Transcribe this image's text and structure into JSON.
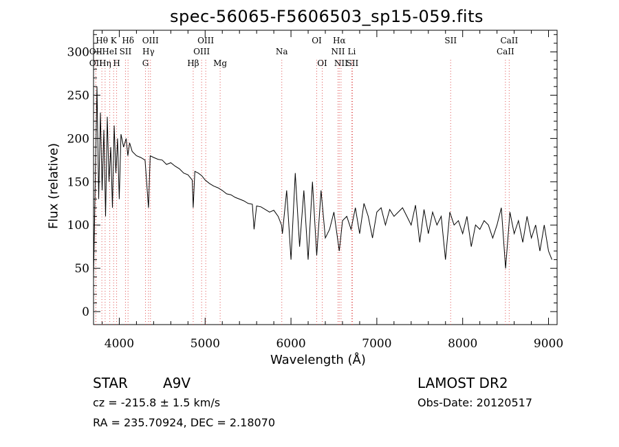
{
  "chart_data": {
    "type": "line",
    "title": "spec-56065-F5606503_sp15-059.fits",
    "xlabel": "Wavelength (Å)",
    "ylabel": "Flux (relative)",
    "xlim": [
      3700,
      9100
    ],
    "ylim": [
      -15,
      325
    ],
    "xticks": [
      4000,
      5000,
      6000,
      7000,
      8000,
      9000
    ],
    "yticks": [
      0,
      50,
      100,
      150,
      200,
      250,
      300
    ],
    "series": [
      {
        "x": [
          3700,
          3720,
          3740,
          3760,
          3780,
          3800,
          3820,
          3840,
          3860,
          3880,
          3900,
          3920,
          3940,
          3960,
          3980,
          4000,
          4020,
          4050,
          4080,
          4100,
          4120,
          4150,
          4200,
          4250,
          4300,
          4340,
          4360,
          4400,
          4450,
          4500,
          4550,
          4600,
          4650,
          4700,
          4750,
          4800,
          4850,
          4861,
          4880,
          4920,
          4960,
          5000,
          5050,
          5100,
          5150,
          5200,
          5250,
          5300,
          5350,
          5400,
          5450,
          5500,
          5550,
          5570,
          5600,
          5650,
          5700,
          5750,
          5800,
          5850,
          5890,
          5900,
          5950,
          6000,
          6050,
          6100,
          6150,
          6200,
          6250,
          6300,
          6350,
          6400,
          6450,
          6500,
          6563,
          6600,
          6650,
          6700,
          6750,
          6800,
          6850,
          6900,
          6950,
          7000,
          7050,
          7100,
          7150,
          7200,
          7250,
          7300,
          7350,
          7400,
          7450,
          7500,
          7550,
          7600,
          7650,
          7700,
          7750,
          7800,
          7850,
          7900,
          7950,
          8000,
          8050,
          8100,
          8150,
          8200,
          8250,
          8300,
          8350,
          8400,
          8450,
          8500,
          8550,
          8600,
          8650,
          8700,
          8750,
          8800,
          8850,
          8900,
          8950,
          9000,
          9040
        ],
        "y": [
          40,
          150,
          260,
          130,
          230,
          140,
          210,
          110,
          225,
          150,
          190,
          120,
          215,
          160,
          200,
          130,
          205,
          190,
          200,
          180,
          195,
          185,
          180,
          178,
          175,
          120,
          180,
          178,
          176,
          175,
          170,
          172,
          168,
          165,
          160,
          158,
          152,
          120,
          162,
          160,
          157,
          152,
          148,
          145,
          143,
          140,
          136,
          135,
          132,
          130,
          128,
          125,
          124,
          95,
          122,
          121,
          118,
          115,
          117,
          110,
          100,
          90,
          140,
          60,
          160,
          75,
          140,
          60,
          150,
          65,
          140,
          85,
          95,
          115,
          70,
          105,
          110,
          95,
          120,
          90,
          125,
          110,
          85,
          115,
          120,
          100,
          118,
          110,
          115,
          120,
          110,
          100,
          123,
          80,
          118,
          90,
          115,
          100,
          110,
          60,
          115,
          100,
          105,
          90,
          110,
          75,
          100,
          95,
          105,
          100,
          85,
          100,
          120,
          50,
          115,
          90,
          105,
          80,
          110,
          85,
          100,
          70,
          100,
          70,
          60
        ]
      }
    ],
    "lines_top": [
      {
        "label": "Hθ",
        "x": 3797
      },
      {
        "label": "K",
        "x": 3934
      },
      {
        "label": "Hδ",
        "x": 4102
      },
      {
        "label": "OIII",
        "x": 4363
      },
      {
        "label": "OIII",
        "x": 5007
      },
      {
        "label": "OI",
        "x": 6300
      },
      {
        "label": "Hα",
        "x": 6563
      },
      {
        "label": "SII",
        "x": 7860
      },
      {
        "label": "CaII",
        "x": 8542
      }
    ],
    "lines_mid": [
      {
        "label": "OII",
        "x": 3727
      },
      {
        "label": "HeI",
        "x": 3889
      },
      {
        "label": "SII",
        "x": 4072
      },
      {
        "label": "Hγ",
        "x": 4340
      },
      {
        "label": "OIII",
        "x": 4959
      },
      {
        "label": "Na",
        "x": 5893
      },
      {
        "label": "NII",
        "x": 6548
      },
      {
        "label": "Li",
        "x": 6708
      },
      {
        "label": "CaII",
        "x": 8498
      }
    ],
    "lines_low": [
      {
        "label": "OII",
        "x": 3727
      },
      {
        "label": "Hη",
        "x": 3835
      },
      {
        "label": "H",
        "x": 3969
      },
      {
        "label": "G",
        "x": 4305
      },
      {
        "label": "Hβ",
        "x": 4861
      },
      {
        "label": "Mg",
        "x": 5175
      },
      {
        "label": "OI",
        "x": 6364
      },
      {
        "label": "NII",
        "x": 6583
      },
      {
        "label": "SII",
        "x": 6716
      }
    ]
  },
  "info": {
    "class_label": "STAR",
    "subclass": "A9V",
    "survey": "LAMOST DR2",
    "cz": "cz = -215.8 ± 1.5 km/s",
    "obs_date": "Obs-Date: 20120517",
    "coords": "RA = 235.70924, DEC =   2.18070"
  },
  "colors": {
    "line_markers": "#e05050",
    "spectrum": "#000000"
  }
}
